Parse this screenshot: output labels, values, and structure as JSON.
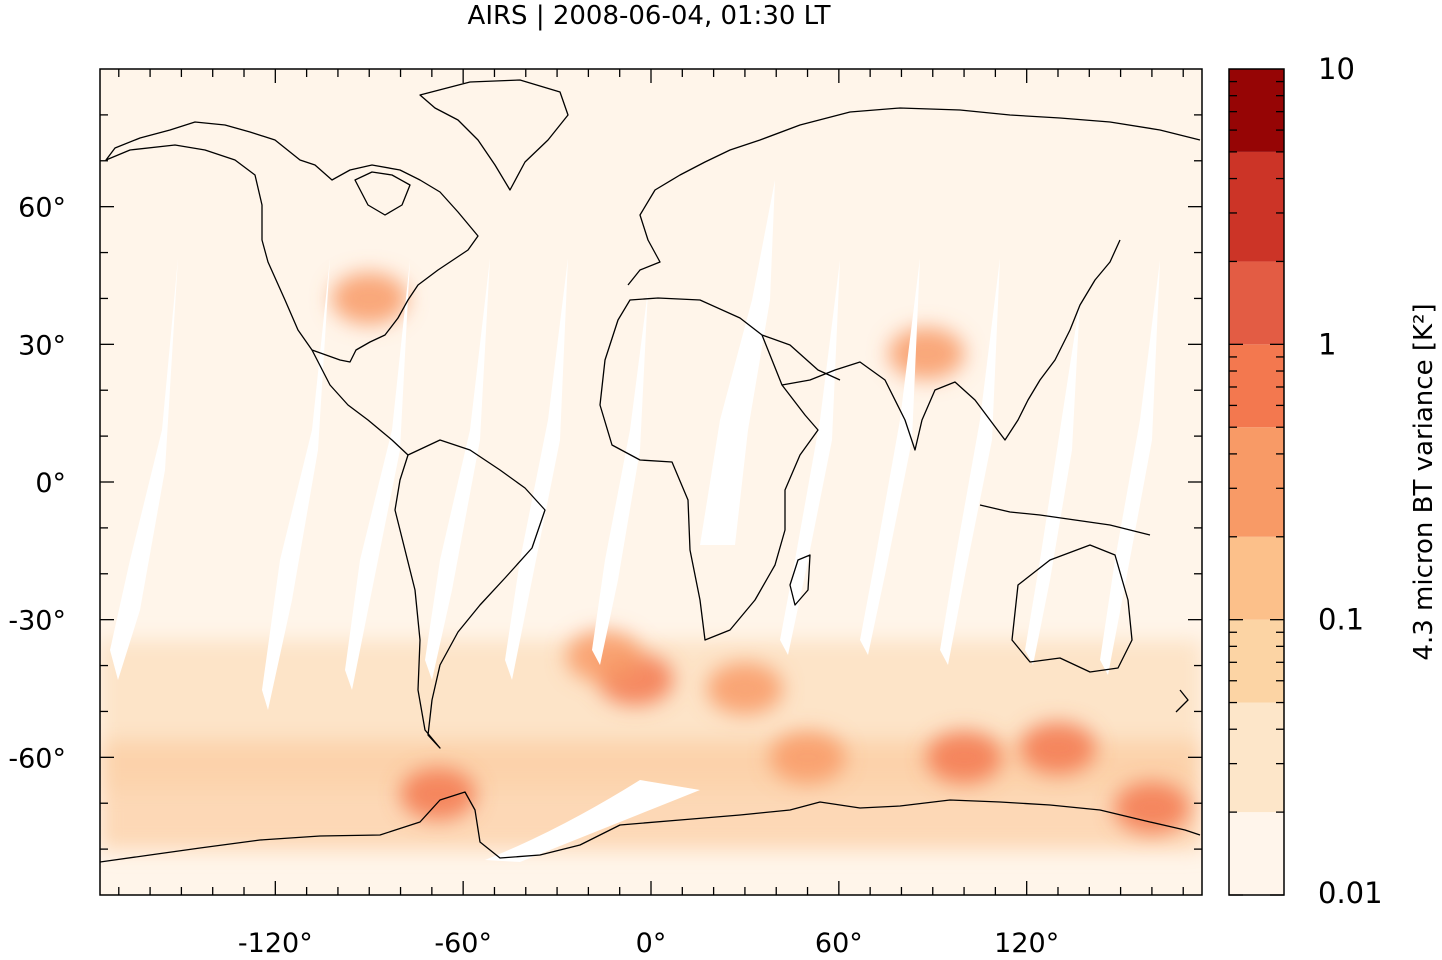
{
  "title": "AIRS | 2008-06-04, 01:30 LT",
  "map": {
    "projection": "equirectangular",
    "lon_range": [
      -176,
      176
    ],
    "lat_range": [
      -90,
      90
    ],
    "x_ticks": [
      {
        "value": -120,
        "label": "-120°"
      },
      {
        "value": -60,
        "label": "-60°"
      },
      {
        "value": 0,
        "label": "0°"
      },
      {
        "value": 60,
        "label": "60°"
      },
      {
        "value": 120,
        "label": "120°"
      }
    ],
    "y_ticks": [
      {
        "value": 60,
        "label": "60°"
      },
      {
        "value": 30,
        "label": "30°"
      },
      {
        "value": 0,
        "label": "0°"
      },
      {
        "value": -30,
        "label": "-30°"
      },
      {
        "value": -60,
        "label": "-60°"
      }
    ],
    "swath_gap_color": "#ffffff",
    "background_field_color": "#fff5ea"
  },
  "colorbar": {
    "label": "4.3 micron BT variance [K²]",
    "scale": "log",
    "range": [
      0.01,
      10
    ],
    "tick_labels": [
      {
        "value": 10,
        "label": "10"
      },
      {
        "value": 1,
        "label": "1"
      },
      {
        "value": 0.1,
        "label": "0.1"
      },
      {
        "value": 0.01,
        "label": "0.01"
      }
    ],
    "bins": [
      {
        "low": 0.01,
        "high": 0.02,
        "color": "#fff5eb"
      },
      {
        "low": 0.02,
        "high": 0.05,
        "color": "#fde6c9"
      },
      {
        "low": 0.05,
        "high": 0.1,
        "color": "#fcd4a4"
      },
      {
        "low": 0.1,
        "high": 0.2,
        "color": "#fcc08a"
      },
      {
        "low": 0.2,
        "high": 0.5,
        "color": "#f89a66"
      },
      {
        "low": 0.5,
        "high": 1,
        "color": "#f3784f"
      },
      {
        "low": 1,
        "high": 2,
        "color": "#e35c44"
      },
      {
        "low": 2,
        "high": 5,
        "color": "#cc3427"
      },
      {
        "low": 5,
        "high": 10,
        "color": "#960505"
      }
    ]
  },
  "hotspots": [
    {
      "lon": -5,
      "lat": -43,
      "value": 0.8
    },
    {
      "lon": -15,
      "lat": -38,
      "value": 0.4
    },
    {
      "lon": 30,
      "lat": -45,
      "value": 0.4
    },
    {
      "lon": 100,
      "lat": -60,
      "value": 0.5
    },
    {
      "lon": 130,
      "lat": -58,
      "value": 0.5
    },
    {
      "lon": -68,
      "lat": -68,
      "value": 0.8
    },
    {
      "lon": 160,
      "lat": -71,
      "value": 0.5
    },
    {
      "lon": 88,
      "lat": 28,
      "value": 0.3
    },
    {
      "lon": -90,
      "lat": 40,
      "value": 0.25
    },
    {
      "lon": 50,
      "lat": -60,
      "value": 0.3
    }
  ]
}
